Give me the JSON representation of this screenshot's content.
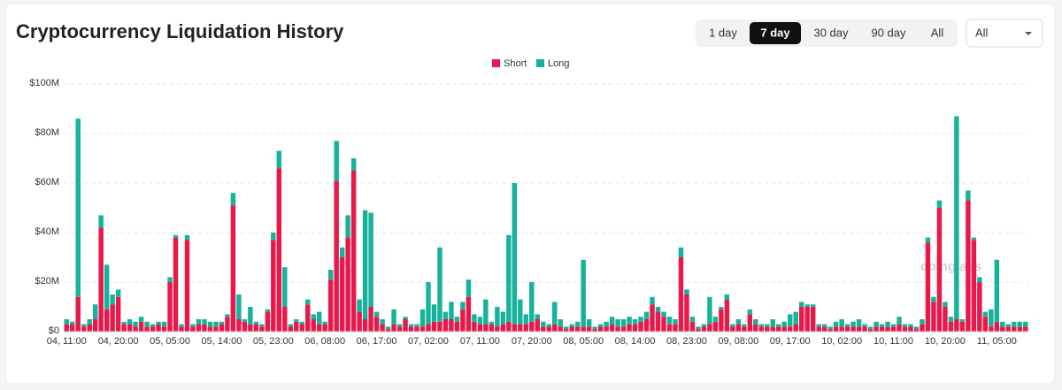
{
  "header": {
    "title": "Cryptocurrency Liquidation History"
  },
  "controls": {
    "ranges": [
      "1 day",
      "7 day",
      "30 day",
      "90 day",
      "All"
    ],
    "active_range": 1,
    "dropdown": "All"
  },
  "watermark": "coinglass",
  "chart_data": {
    "type": "stacked_bar",
    "categories": [
      "04, 11:00",
      null,
      null,
      null,
      null,
      null,
      null,
      null,
      null,
      "04, 20:00",
      null,
      null,
      null,
      null,
      null,
      null,
      null,
      null,
      "05, 05:00",
      null,
      null,
      null,
      null,
      null,
      null,
      null,
      null,
      "05, 14:00",
      null,
      null,
      null,
      null,
      null,
      null,
      null,
      null,
      "05, 23:00",
      null,
      null,
      null,
      null,
      null,
      null,
      null,
      null,
      "06, 08:00",
      null,
      null,
      null,
      null,
      null,
      null,
      null,
      null,
      "06, 17:00",
      null,
      null,
      null,
      null,
      null,
      null,
      null,
      null,
      "07, 02:00",
      null,
      null,
      null,
      null,
      null,
      null,
      null,
      null,
      "07, 11:00",
      null,
      null,
      null,
      null,
      null,
      null,
      null,
      null,
      "07, 20:00",
      null,
      null,
      null,
      null,
      null,
      null,
      null,
      null,
      "08, 05:00",
      null,
      null,
      null,
      null,
      null,
      null,
      null,
      null,
      "08, 14:00",
      null,
      null,
      null,
      null,
      null,
      null,
      null,
      null,
      "08, 23:00",
      null,
      null,
      null,
      null,
      null,
      null,
      null,
      null,
      "09, 08:00",
      null,
      null,
      null,
      null,
      null,
      null,
      null,
      null,
      "09, 17:00",
      null,
      null,
      null,
      null,
      null,
      null,
      null,
      null,
      "10, 02:00",
      null,
      null,
      null,
      null,
      null,
      null,
      null,
      null,
      "10, 11:00",
      null,
      null,
      null,
      null,
      null,
      null,
      null,
      null,
      "10, 20:00",
      null,
      null,
      null,
      null,
      null,
      null,
      null,
      null,
      "11, 05:00",
      null,
      null,
      null,
      null,
      null
    ],
    "series": [
      {
        "name": "Short",
        "color": "#e8184a",
        "values": [
          3,
          3,
          14,
          2,
          3,
          5,
          42,
          9,
          11,
          14,
          3,
          3,
          2,
          4,
          2,
          2,
          3,
          2,
          20,
          38,
          2,
          37,
          2,
          3,
          3,
          2,
          2,
          3,
          6,
          51,
          5,
          4,
          3,
          3,
          2,
          8,
          37,
          66,
          10,
          2,
          4,
          3,
          11,
          5,
          3,
          3,
          21,
          61,
          30,
          38,
          65,
          8,
          5,
          10,
          6,
          3,
          1,
          3,
          2,
          5,
          2,
          2,
          2,
          3,
          4,
          4,
          5,
          5,
          4,
          9,
          14,
          4,
          3,
          3,
          3,
          2,
          3,
          4,
          3,
          3,
          3,
          4,
          5,
          2,
          2,
          3,
          2,
          1,
          2,
          2,
          2,
          2,
          1,
          2,
          2,
          3,
          2,
          2,
          3,
          3,
          4,
          5,
          11,
          8,
          6,
          3,
          3,
          30,
          15,
          4,
          1,
          2,
          3,
          4,
          9,
          13,
          2,
          3,
          2,
          7,
          3,
          2,
          2,
          2,
          2,
          2,
          2,
          3,
          10,
          10,
          10,
          2,
          2,
          1,
          2,
          2,
          2,
          2,
          2,
          2,
          1,
          2,
          2,
          2,
          2,
          3,
          2,
          2,
          1,
          3,
          36,
          12,
          50,
          10,
          4,
          5,
          4,
          53,
          37,
          20,
          6,
          2,
          4,
          2,
          2,
          2,
          2,
          2
        ]
      },
      {
        "name": "Long",
        "color": "#16b39b",
        "values": [
          2,
          1,
          72,
          1,
          2,
          6,
          5,
          18,
          4,
          3,
          1,
          2,
          2,
          2,
          2,
          1,
          1,
          2,
          2,
          1,
          1,
          2,
          1,
          2,
          2,
          2,
          2,
          1,
          1,
          5,
          10,
          1,
          7,
          1,
          1,
          1,
          3,
          7,
          16,
          1,
          1,
          1,
          2,
          2,
          5,
          1,
          4,
          16,
          4,
          9,
          5,
          5,
          44,
          38,
          2,
          2,
          1,
          6,
          1,
          1,
          1,
          1,
          7,
          17,
          7,
          30,
          3,
          7,
          2,
          3,
          7,
          3,
          3,
          10,
          1,
          8,
          5,
          35,
          57,
          10,
          4,
          16,
          2,
          2,
          1,
          9,
          3,
          1,
          1,
          2,
          27,
          3,
          1,
          1,
          2,
          3,
          3,
          3,
          3,
          2,
          2,
          3,
          3,
          2,
          2,
          3,
          2,
          4,
          2,
          2,
          1,
          1,
          11,
          2,
          1,
          2,
          1,
          2,
          1,
          2,
          2,
          1,
          1,
          3,
          1,
          2,
          5,
          5,
          2,
          1,
          1,
          1,
          1,
          1,
          2,
          3,
          1,
          2,
          3,
          1,
          1,
          2,
          1,
          2,
          1,
          3,
          1,
          1,
          1,
          2,
          2,
          2,
          3,
          2,
          2,
          82,
          1,
          4,
          1,
          2,
          2,
          7,
          25,
          2,
          1,
          2,
          2,
          2
        ]
      }
    ],
    "ylim": [
      0,
      100
    ],
    "yticks": [
      {
        "value": 0,
        "label": "$0"
      },
      {
        "value": 20,
        "label": "$20M"
      },
      {
        "value": 40,
        "label": "$40M"
      },
      {
        "value": 60,
        "label": "$60M"
      },
      {
        "value": 80,
        "label": "$80M"
      },
      {
        "value": 100,
        "label": "$100M"
      }
    ],
    "grid": true,
    "legend": "top"
  }
}
